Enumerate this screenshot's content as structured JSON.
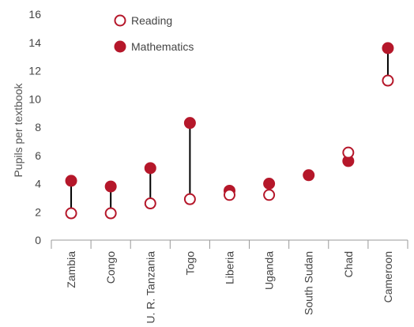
{
  "chart_data": {
    "type": "scatter",
    "title": "",
    "xlabel": "",
    "ylabel": "Pupils per textbook",
    "ylim": [
      0,
      16
    ],
    "yticks": [
      0,
      2,
      4,
      6,
      8,
      10,
      12,
      14,
      16
    ],
    "grid": false,
    "legend_position": "top-left",
    "categories": [
      "Zambia",
      "Congo",
      "U. R. Tanzania",
      "Togo",
      "Liberia",
      "Uganda",
      "South Sudan",
      "Chad",
      "Cameroon"
    ],
    "series": [
      {
        "name": "Reading",
        "marker": "open-circle",
        "color": "#b5172a",
        "values": [
          1.9,
          1.9,
          2.6,
          2.9,
          3.2,
          3.2,
          4.6,
          6.2,
          11.3
        ]
      },
      {
        "name": "Mathematics",
        "marker": "filled-circle",
        "color": "#b5172a",
        "values": [
          4.2,
          3.8,
          5.1,
          8.3,
          3.5,
          4.0,
          4.6,
          5.6,
          13.6
        ]
      }
    ]
  }
}
